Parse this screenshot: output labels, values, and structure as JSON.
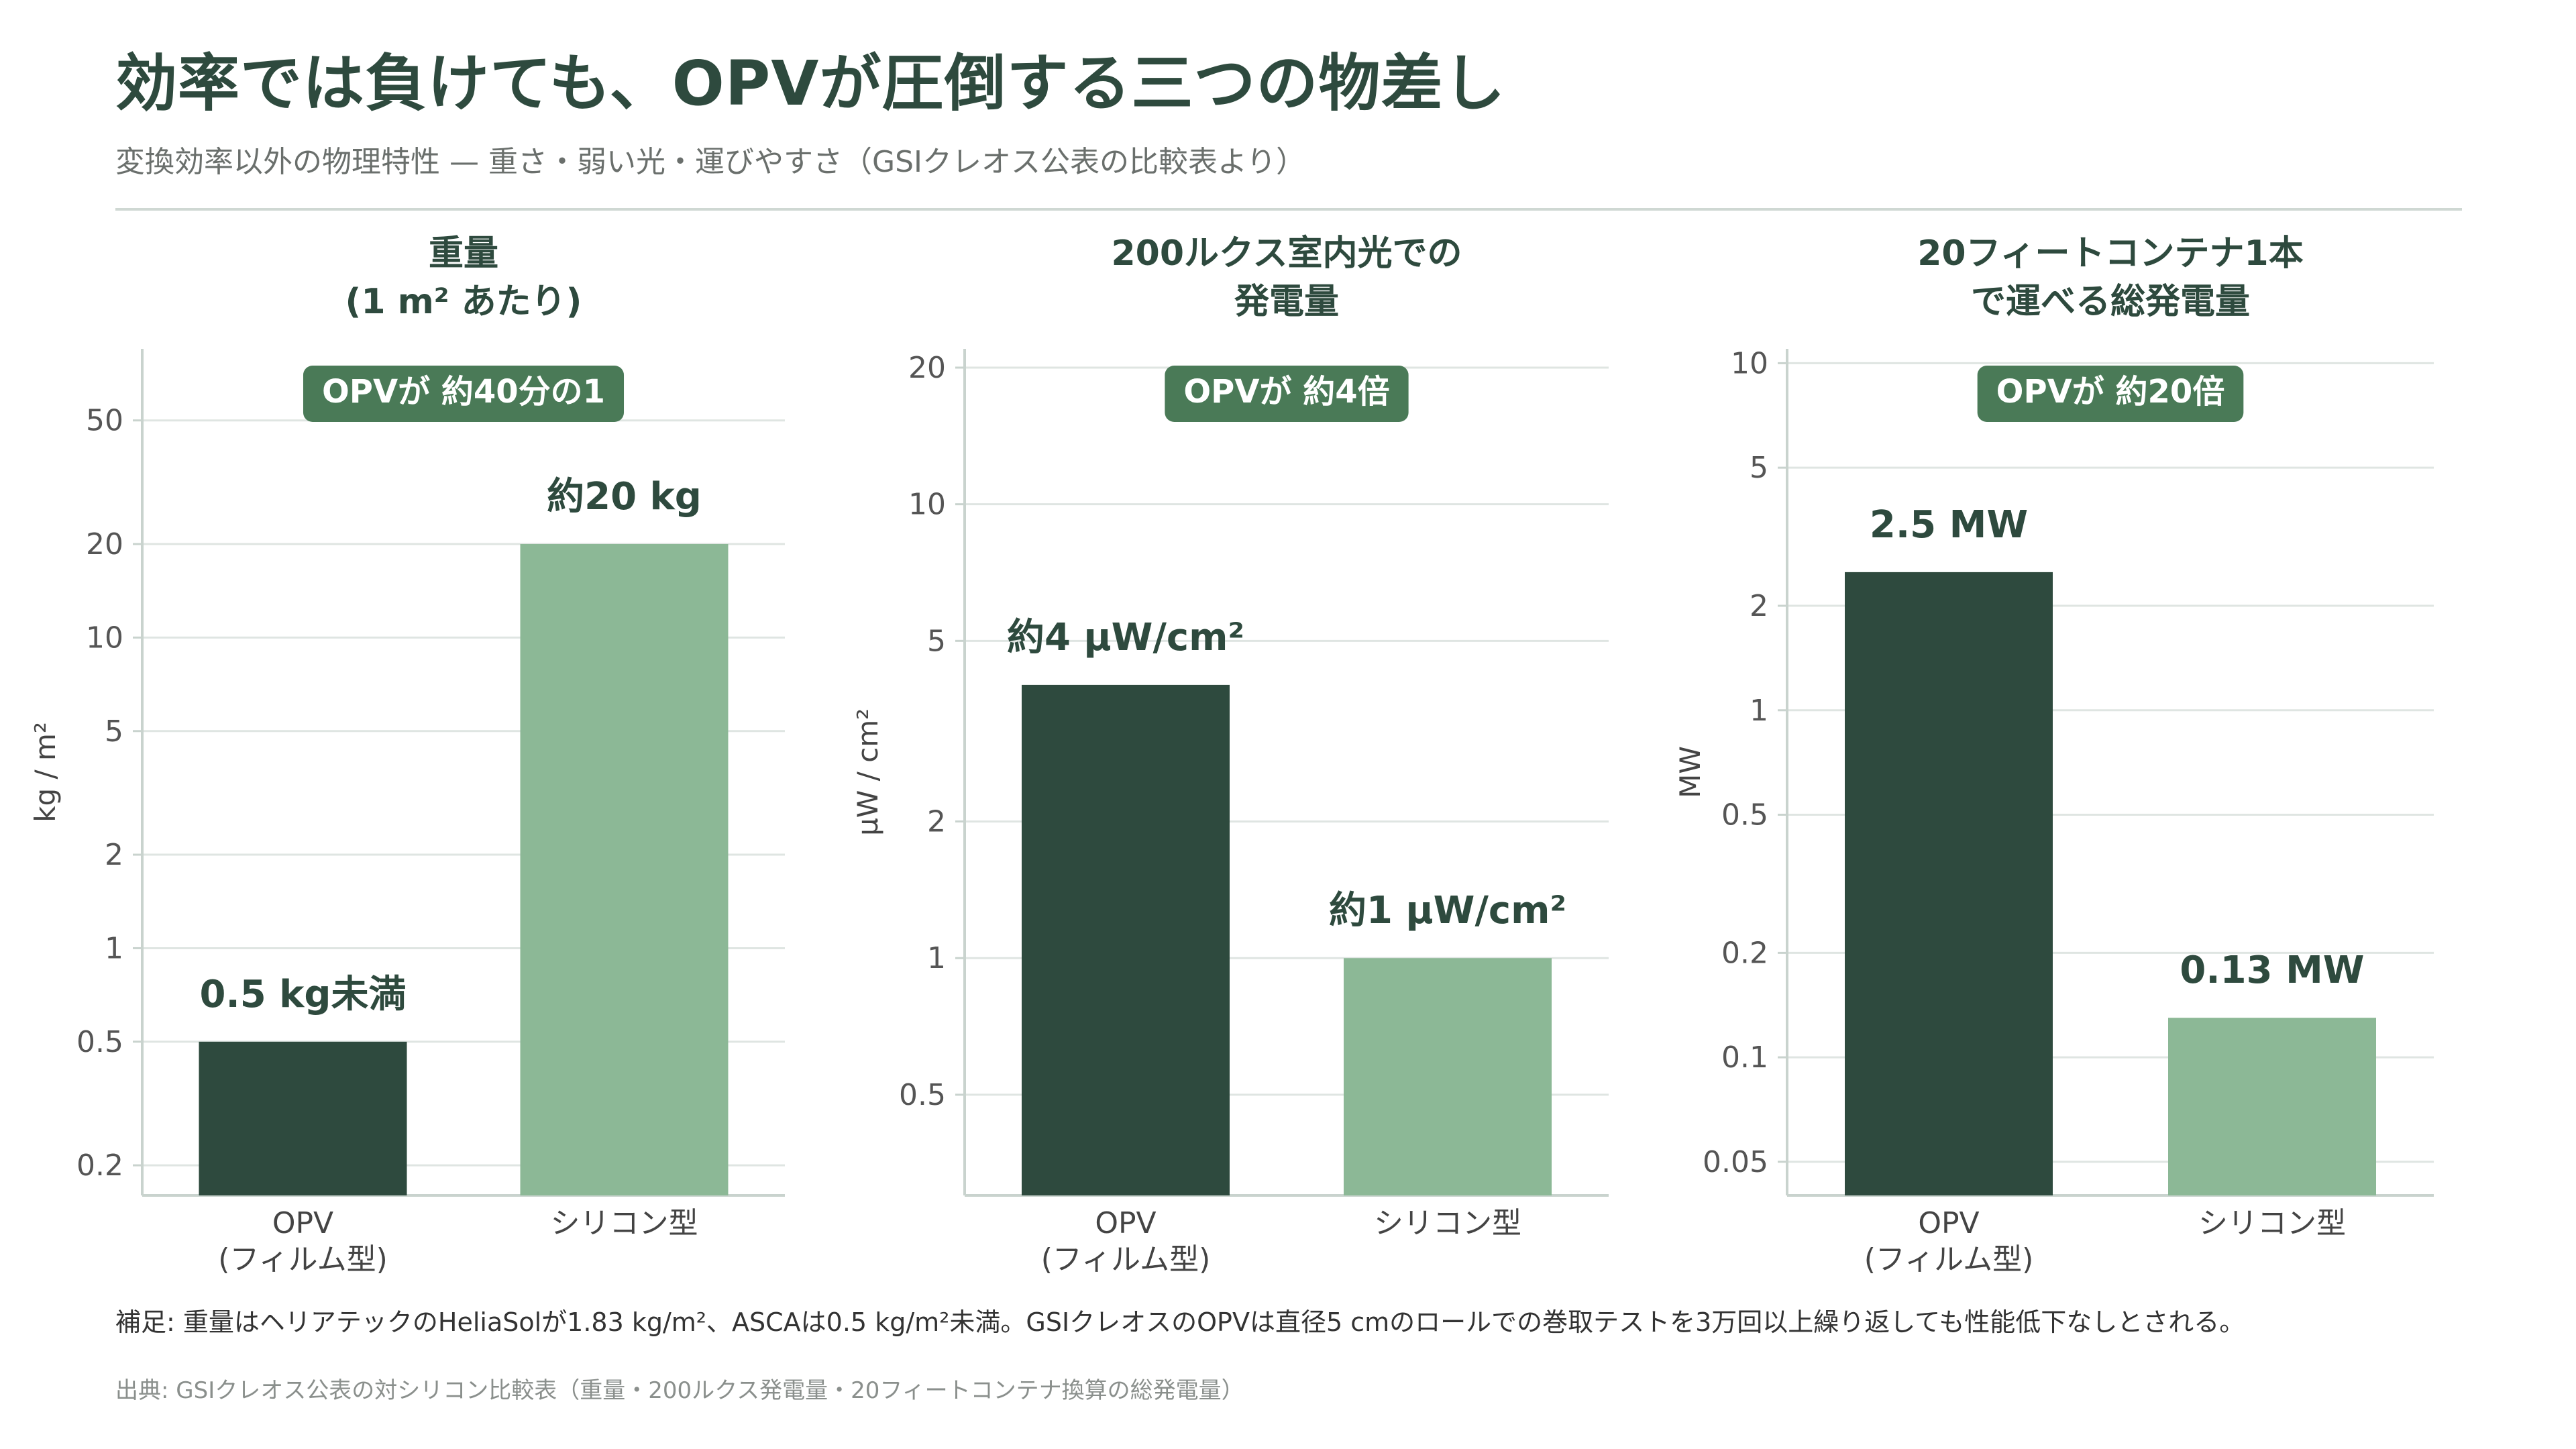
{
  "title": "効率では負けても、OPVが圧倒する三つの物差し",
  "subtitle": "変換効率以外の物理特性 — 重さ・弱い光・運びやすさ（GSIクレオス公表の比較表より）",
  "colors": {
    "opv": "#2e4a3e",
    "silicon": "#8cb896",
    "badge": "#4a7a57",
    "grid": "#dfe5e2",
    "axis": "#c9d3ce"
  },
  "chart_data": [
    {
      "type": "bar",
      "title_lines": [
        "重量",
        "(1 m² あたり)"
      ],
      "ylabel": "kg / m²",
      "yscale": "log",
      "ylim": [
        0.16,
        85
      ],
      "yticks": [
        0.2,
        0.5,
        1,
        2,
        5,
        10,
        20,
        50
      ],
      "categories": [
        [
          "OPV",
          "(フィルム型)"
        ],
        [
          "シリコン型"
        ]
      ],
      "values": [
        0.5,
        20
      ],
      "value_labels": [
        "0.5 kg未満",
        "約20 kg"
      ],
      "badge": "OPVが 約40分の1"
    },
    {
      "type": "bar",
      "title_lines": [
        "200ルクス室内光での",
        "発電量"
      ],
      "ylabel": "μW / cm²",
      "yscale": "log",
      "ylim": [
        0.3,
        22
      ],
      "yticks": [
        0.5,
        1,
        2,
        5,
        10,
        20
      ],
      "categories": [
        [
          "OPV",
          "(フィルム型)"
        ],
        [
          "シリコン型"
        ]
      ],
      "values": [
        4,
        1
      ],
      "value_labels": [
        "約4 μW/cm²",
        "約1 μW/cm²"
      ],
      "badge": "OPVが 約4倍"
    },
    {
      "type": "bar",
      "title_lines": [
        "20フィートコンテナ1本",
        "で運べる総発電量"
      ],
      "ylabel": "MW",
      "yscale": "log",
      "ylim": [
        0.04,
        11
      ],
      "yticks": [
        0.05,
        0.1,
        0.2,
        0.5,
        1,
        2,
        5,
        10
      ],
      "categories": [
        [
          "OPV",
          "(フィルム型)"
        ],
        [
          "シリコン型"
        ]
      ],
      "values": [
        2.5,
        0.13
      ],
      "value_labels": [
        "2.5 MW",
        "0.13 MW"
      ],
      "badge": "OPVが 約20倍"
    }
  ],
  "note": "補足: 重量はヘリアテックのHeliaSolが1.83 kg/m²、ASCAは0.5 kg/m²未満。GSIクレオスのOPVは直径5 cmのロールでの巻取テストを3万回以上繰り返しても性能低下なしとされる。",
  "source": "出典: GSIクレオス公表の対シリコン比較表（重量・200ルクス発電量・20フィートコンテナ換算の総発電量）"
}
